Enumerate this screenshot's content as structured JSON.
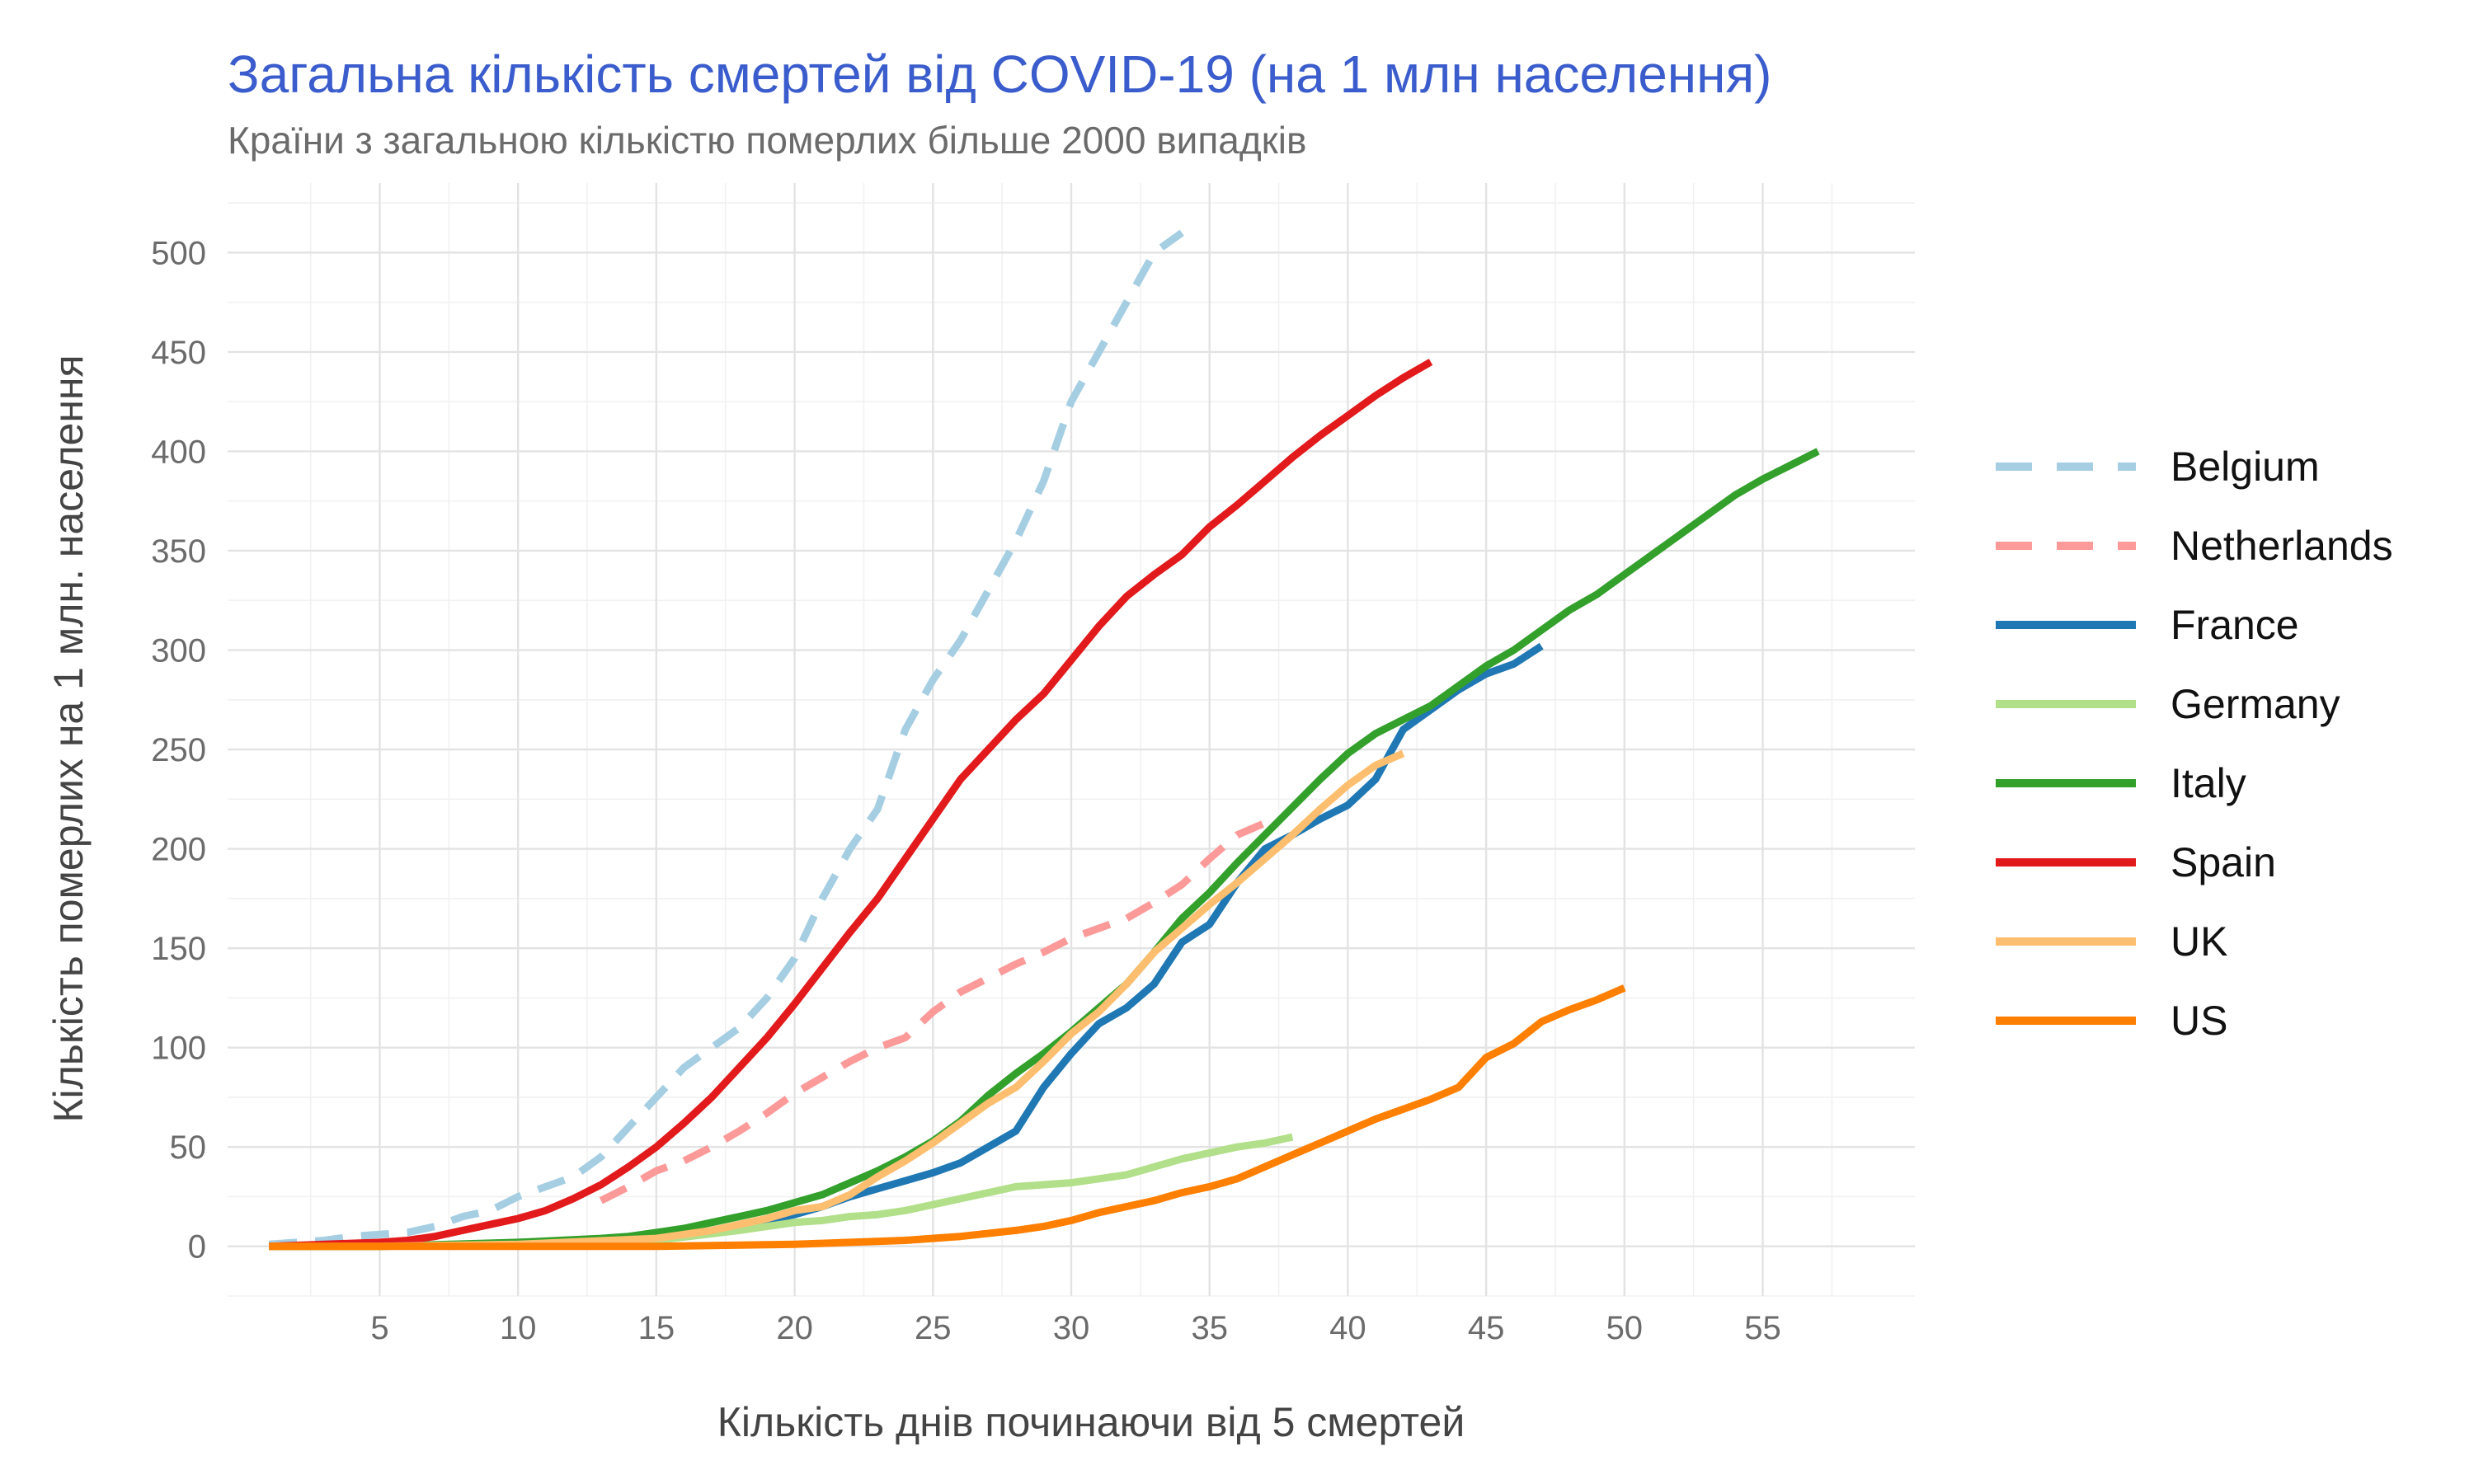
{
  "chart_data": {
    "type": "line",
    "title": "Загальна кількість смертей від COVID-19 (на 1 млн населення)",
    "subtitle": "Країни з загальною кількістю померлих більше 2000 випадків",
    "xlabel": "Кількість днів починаючи від 5 смертей",
    "ylabel": "Кількість померлих на 1 млн. населення",
    "xlim": [
      -0.5,
      60.5
    ],
    "ylim": [
      -25,
      535
    ],
    "x_ticks": [
      5,
      10,
      15,
      20,
      25,
      30,
      35,
      40,
      45,
      50,
      55
    ],
    "y_ticks": [
      0,
      50,
      100,
      150,
      200,
      250,
      300,
      350,
      400,
      450,
      500
    ],
    "grid": true,
    "legend_position": "right",
    "series": [
      {
        "name": "Belgium",
        "color": "#a6cee3",
        "dash": "dashed",
        "x": [
          1,
          2,
          3,
          4,
          5,
          6,
          7,
          8,
          9,
          10,
          11,
          12,
          13,
          14,
          15,
          16,
          17,
          18,
          19,
          20,
          21,
          22,
          23,
          24,
          25,
          26,
          27,
          28,
          29,
          30,
          31,
          32,
          33,
          34
        ],
        "y": [
          1,
          2,
          3,
          5,
          6,
          7,
          10,
          15,
          18,
          25,
          30,
          35,
          45,
          60,
          75,
          90,
          100,
          110,
          125,
          145,
          175,
          200,
          220,
          260,
          285,
          305,
          330,
          355,
          385,
          425,
          450,
          475,
          500,
          510
        ]
      },
      {
        "name": "Netherlands",
        "color": "#fb9a99",
        "dash": "dashed",
        "x": [
          13,
          14,
          15,
          16,
          17,
          18,
          19,
          20,
          21,
          22,
          23,
          24,
          25,
          26,
          27,
          28,
          29,
          30,
          31,
          32,
          33,
          34,
          35,
          36,
          37
        ],
        "y": [
          23,
          30,
          38,
          43,
          50,
          58,
          67,
          77,
          85,
          93,
          100,
          105,
          118,
          128,
          135,
          142,
          148,
          155,
          160,
          165,
          173,
          182,
          195,
          207,
          213
        ]
      },
      {
        "name": "France",
        "color": "#1f78b4",
        "dash": "solid",
        "x": [
          1,
          5,
          10,
          15,
          18,
          19,
          20,
          21,
          22,
          23,
          24,
          25,
          26,
          27,
          28,
          29,
          30,
          31,
          32,
          33,
          34,
          35,
          36,
          37,
          38,
          39,
          40,
          41,
          42,
          43,
          44,
          45,
          46,
          47
        ],
        "y": [
          0,
          0,
          1,
          3,
          10,
          13,
          16,
          20,
          25,
          29,
          33,
          37,
          42,
          50,
          58,
          80,
          97,
          112,
          120,
          132,
          153,
          162,
          183,
          200,
          207,
          215,
          222,
          235,
          260,
          270,
          280,
          288,
          293,
          302
        ]
      },
      {
        "name": "Germany",
        "color": "#b2df8a",
        "dash": "solid",
        "x": [
          1,
          5,
          10,
          15,
          18,
          19,
          20,
          21,
          22,
          23,
          24,
          25,
          26,
          27,
          28,
          29,
          30,
          31,
          32,
          33,
          34,
          35,
          36,
          37,
          38
        ],
        "y": [
          0,
          0,
          1,
          3,
          8,
          10,
          12,
          13,
          15,
          16,
          18,
          21,
          24,
          27,
          30,
          31,
          32,
          34,
          36,
          40,
          44,
          47,
          50,
          52,
          55
        ]
      },
      {
        "name": "Italy",
        "color": "#33a02c",
        "dash": "solid",
        "x": [
          1,
          5,
          10,
          13,
          14,
          15,
          16,
          17,
          18,
          19,
          20,
          21,
          22,
          23,
          24,
          25,
          26,
          27,
          28,
          29,
          30,
          31,
          32,
          33,
          34,
          35,
          36,
          37,
          38,
          39,
          40,
          41,
          42,
          43,
          44,
          45,
          46,
          47,
          48,
          49,
          50,
          51,
          52,
          53,
          54,
          55,
          56,
          57
        ],
        "y": [
          0,
          0,
          2,
          4,
          5,
          7,
          9,
          12,
          15,
          18,
          22,
          26,
          32,
          38,
          45,
          53,
          63,
          76,
          87,
          97,
          108,
          120,
          132,
          148,
          165,
          178,
          193,
          207,
          221,
          235,
          248,
          258,
          265,
          272,
          282,
          292,
          300,
          310,
          320,
          328,
          338,
          348,
          358,
          368,
          378,
          386,
          393,
          400
        ]
      },
      {
        "name": "Spain",
        "color": "#e31a1c",
        "dash": "solid",
        "x": [
          1,
          3,
          5,
          6,
          7,
          8,
          9,
          10,
          11,
          12,
          13,
          14,
          15,
          16,
          17,
          18,
          19,
          20,
          21,
          22,
          23,
          24,
          25,
          26,
          27,
          28,
          29,
          30,
          31,
          32,
          33,
          34,
          35,
          36,
          37,
          38,
          39,
          40,
          41,
          42,
          43
        ],
        "y": [
          0,
          1,
          2,
          3,
          5,
          8,
          11,
          14,
          18,
          24,
          31,
          40,
          50,
          62,
          75,
          90,
          105,
          122,
          140,
          158,
          175,
          195,
          215,
          235,
          250,
          265,
          278,
          295,
          312,
          327,
          338,
          348,
          362,
          373,
          385,
          397,
          408,
          418,
          428,
          437,
          445
        ]
      },
      {
        "name": "UK",
        "color": "#fdbf6f",
        "dash": "solid",
        "x": [
          1,
          5,
          10,
          15,
          16,
          17,
          18,
          19,
          20,
          21,
          22,
          23,
          24,
          25,
          26,
          27,
          28,
          29,
          30,
          31,
          32,
          33,
          34,
          35,
          36,
          37,
          38,
          39,
          40,
          41,
          42
        ],
        "y": [
          0,
          0,
          1,
          4,
          6,
          8,
          11,
          14,
          18,
          20,
          26,
          35,
          43,
          52,
          62,
          72,
          80,
          93,
          107,
          118,
          132,
          148,
          160,
          172,
          183,
          195,
          207,
          220,
          232,
          242,
          248
        ]
      },
      {
        "name": "US",
        "color": "#ff7f00",
        "dash": "solid",
        "x": [
          1,
          5,
          10,
          15,
          20,
          22,
          24,
          26,
          28,
          29,
          30,
          31,
          32,
          33,
          34,
          35,
          36,
          37,
          38,
          39,
          40,
          41,
          42,
          43,
          44,
          45,
          46,
          47,
          48,
          49,
          50
        ],
        "y": [
          0,
          0,
          0,
          0,
          1,
          2,
          3,
          5,
          8,
          10,
          13,
          17,
          20,
          23,
          27,
          30,
          34,
          40,
          46,
          52,
          58,
          64,
          69,
          74,
          80,
          95,
          102,
          113,
          119,
          124,
          130
        ]
      }
    ]
  }
}
